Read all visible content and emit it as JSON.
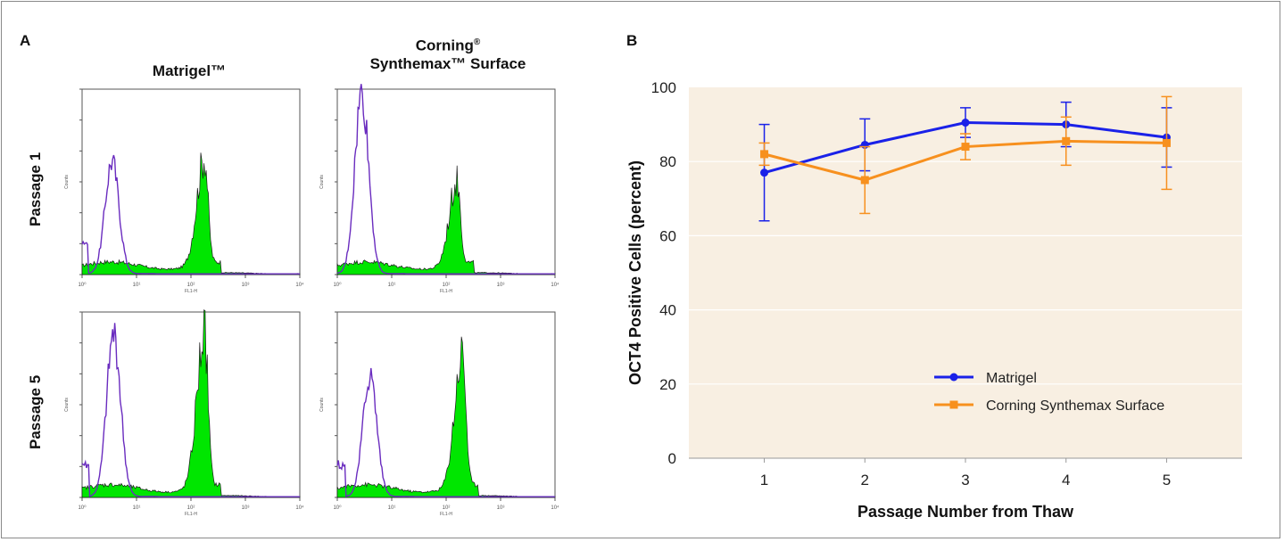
{
  "panel_a": {
    "letter": "A",
    "columns": [
      "Matrigel™",
      "Corning",
      "Synthemax™ Surface"
    ],
    "column_sup": "®",
    "rows": [
      "Passage 1",
      "Passage 5"
    ],
    "x_tick_labels": [
      "10⁰",
      "10¹",
      "10²",
      "10³",
      "10⁴"
    ],
    "y_axis_label": "Counts",
    "x_axis_label": "FL1-H"
  },
  "panel_b": {
    "letter": "B"
  },
  "chart_data": [
    {
      "type": "histogram",
      "panels": [
        {
          "row": "Passage 1",
          "column": "Matrigel™",
          "control_peak": {
            "x_log": 0.55,
            "height": 0.62
          },
          "stained_peak": {
            "x_log": 2.25,
            "height": 0.59
          }
        },
        {
          "row": "Passage 1",
          "column": "Corning® Synthemax™ Surface",
          "control_peak": {
            "x_log": 0.45,
            "height": 1.0
          },
          "stained_peak": {
            "x_log": 2.2,
            "height": 0.46
          }
        },
        {
          "row": "Passage 5",
          "column": "Matrigel™",
          "control_peak": {
            "x_log": 0.58,
            "height": 0.89
          },
          "stained_peak": {
            "x_log": 2.25,
            "height": 0.85
          }
        },
        {
          "row": "Passage 5",
          "column": "Corning® Synthemax™ Surface",
          "control_peak": {
            "x_log": 0.6,
            "height": 0.67
          },
          "stained_peak": {
            "x_log": 2.3,
            "height": 0.74
          }
        }
      ],
      "colors": {
        "control_line": "#6a2cbf",
        "stained_fill": "#00e600",
        "stained_outline": "#1a1a1a"
      }
    },
    {
      "type": "line",
      "x": [
        1,
        2,
        3,
        4,
        5
      ],
      "xlabel": "Passage Number from Thaw",
      "ylabel": "OCT4 Positive Cells (percent)",
      "ylim": [
        0,
        100
      ],
      "yticks": [
        0,
        20,
        40,
        60,
        80,
        100
      ],
      "grid": true,
      "legend_position": "bottom-right",
      "plot_background": "#f8efe2",
      "series": [
        {
          "name": "Matrigel",
          "color": "#1a21e8",
          "marker": "circle",
          "values": [
            77,
            84.5,
            90.5,
            90,
            86.5
          ],
          "error": [
            13,
            7,
            4,
            6,
            8
          ]
        },
        {
          "name": "Corning Synthemax Surface",
          "color": "#f7901e",
          "marker": "square",
          "values": [
            82,
            75,
            84,
            85.5,
            85
          ],
          "error": [
            3,
            9,
            3.5,
            6.5,
            12.5
          ]
        }
      ]
    }
  ]
}
